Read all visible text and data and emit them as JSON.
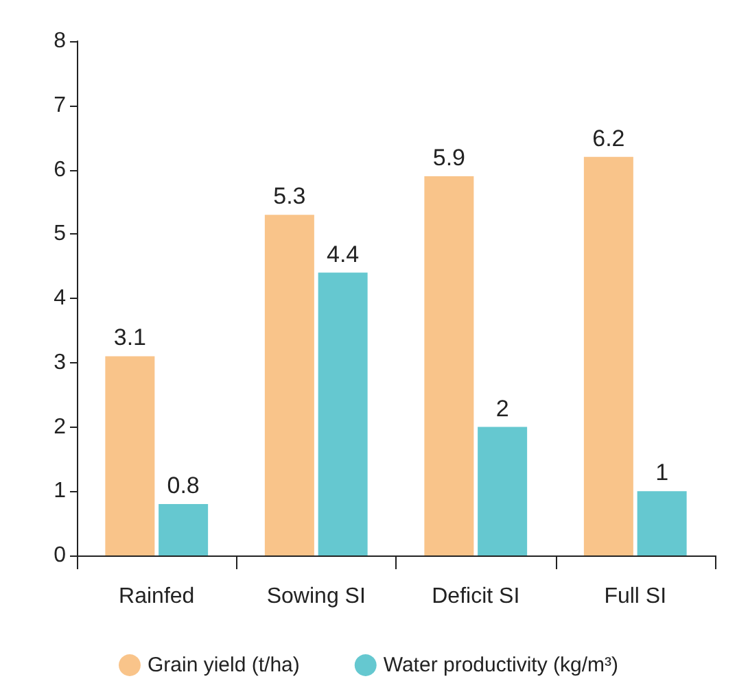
{
  "chart_data": {
    "type": "bar",
    "categories": [
      "Rainfed",
      "Sowing SI",
      "Deficit SI",
      "Full SI"
    ],
    "series": [
      {
        "name": "Grain yield (t/ha)",
        "color": "#f9c48a",
        "values": [
          3.1,
          5.3,
          5.9,
          6.2
        ]
      },
      {
        "name": "Water productivity (kg/m³)",
        "color": "#65c8d0",
        "values": [
          0.8,
          4.4,
          2,
          1
        ]
      }
    ],
    "ylim": [
      0,
      8
    ],
    "yticks": [
      0,
      1,
      2,
      3,
      4,
      5,
      6,
      7,
      8
    ],
    "grid": false,
    "legend": "bottom",
    "data_labels": true
  }
}
